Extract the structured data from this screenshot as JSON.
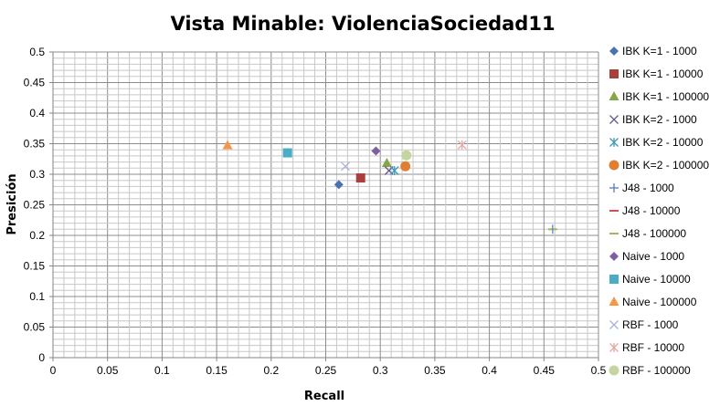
{
  "chart_data": {
    "type": "scatter",
    "title": "Vista Minable: ViolenciaSociedad11",
    "xlabel": "Recall",
    "ylabel": "Presición",
    "xlim": [
      0,
      0.5
    ],
    "ylim": [
      0,
      0.5
    ],
    "x_ticks": [
      "0",
      "0.05",
      "0.1",
      "0.15",
      "0.2",
      "0.25",
      "0.3",
      "0.35",
      "0.4",
      "0.45",
      "0.5"
    ],
    "y_ticks": [
      "0",
      "0.05",
      "0.1",
      "0.15",
      "0.2",
      "0.25",
      "0.3",
      "0.35",
      "0.4",
      "0.45",
      "0.5"
    ],
    "grid": true,
    "legend_position": "right",
    "series": [
      {
        "name": "IBK K=1 - 1000",
        "marker": "diamond",
        "color": "#4a72b0",
        "points": [
          [
            0.262,
            0.283
          ]
        ]
      },
      {
        "name": "IBK K=1 - 10000",
        "marker": "square",
        "color": "#a8413e",
        "points": [
          [
            0.282,
            0.294
          ]
        ]
      },
      {
        "name": "IBK K=1 - 100000",
        "marker": "triangle",
        "color": "#86a448",
        "points": [
          [
            0.306,
            0.318
          ]
        ]
      },
      {
        "name": "IBK K=2 - 1000",
        "marker": "x",
        "color": "#6b568e",
        "points": [
          [
            0.308,
            0.306
          ]
        ]
      },
      {
        "name": "IBK K=2 - 10000",
        "marker": "asterisk",
        "color": "#3d9db5",
        "points": [
          [
            0.313,
            0.306
          ]
        ]
      },
      {
        "name": "IBK K=2 - 100000",
        "marker": "circle",
        "color": "#e07f33",
        "points": [
          [
            0.323,
            0.313
          ]
        ]
      },
      {
        "name": "J48 - 1000",
        "marker": "plus",
        "color": "#5c86c8",
        "points": []
      },
      {
        "name": "J48 - 10000",
        "marker": "dash",
        "color": "#c9554f",
        "points": []
      },
      {
        "name": "J48 - 100000",
        "marker": "dash",
        "color": "#9bbb59",
        "points": [
          [
            0.458,
            0.21
          ]
        ]
      },
      {
        "name": "Naive - 1000",
        "marker": "diamond",
        "color": "#7e5fa0",
        "points": [
          [
            0.296,
            0.338
          ]
        ]
      },
      {
        "name": "Naive - 10000",
        "marker": "square",
        "color": "#4bacc6",
        "points": [
          [
            0.215,
            0.335
          ]
        ]
      },
      {
        "name": "Naive - 100000",
        "marker": "triangle",
        "color": "#f79646",
        "points": [
          [
            0.16,
            0.347
          ]
        ]
      },
      {
        "name": "RBF - 1000",
        "marker": "x",
        "color": "#a9b3d9",
        "points": [
          [
            0.268,
            0.313
          ]
        ]
      },
      {
        "name": "RBF - 10000",
        "marker": "asterisk",
        "color": "#e6a6a4",
        "points": [
          [
            0.375,
            0.348
          ]
        ]
      },
      {
        "name": "RBF - 100000",
        "marker": "circle",
        "color": "#c4d6a0",
        "points": [
          [
            0.324,
            0.331
          ]
        ]
      }
    ]
  }
}
